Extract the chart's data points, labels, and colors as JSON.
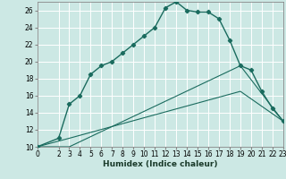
{
  "title": "",
  "xlabel": "Humidex (Indice chaleur)",
  "bg_color": "#cce8e4",
  "grid_color": "#ffffff",
  "line_color": "#1a6b5e",
  "xlim": [
    0,
    23
  ],
  "ylim": [
    10,
    27
  ],
  "xticks": [
    0,
    2,
    3,
    4,
    5,
    6,
    7,
    8,
    9,
    10,
    11,
    12,
    13,
    14,
    15,
    16,
    17,
    18,
    19,
    20,
    21,
    22,
    23
  ],
  "yticks": [
    10,
    12,
    14,
    16,
    18,
    20,
    22,
    24,
    26
  ],
  "line1_x": [
    0,
    2,
    3,
    4,
    5,
    6,
    7,
    8,
    9,
    10,
    11,
    12,
    13,
    14,
    15,
    16,
    17,
    18,
    19,
    20,
    21,
    22,
    23
  ],
  "line1_y": [
    10,
    11,
    15,
    16,
    18.5,
    19.5,
    20,
    21,
    22,
    23,
    24,
    26.3,
    27,
    26,
    25.8,
    25.8,
    25,
    22.5,
    19.5,
    19,
    16.5,
    14.5,
    13
  ],
  "line2_x": [
    0,
    3,
    19,
    23
  ],
  "line2_y": [
    10,
    10,
    19.5,
    13
  ],
  "line3_x": [
    0,
    3,
    19,
    23
  ],
  "line3_y": [
    10,
    11,
    16.5,
    13
  ],
  "xlabel_fontsize": 6.5,
  "tick_fontsize": 5.5
}
